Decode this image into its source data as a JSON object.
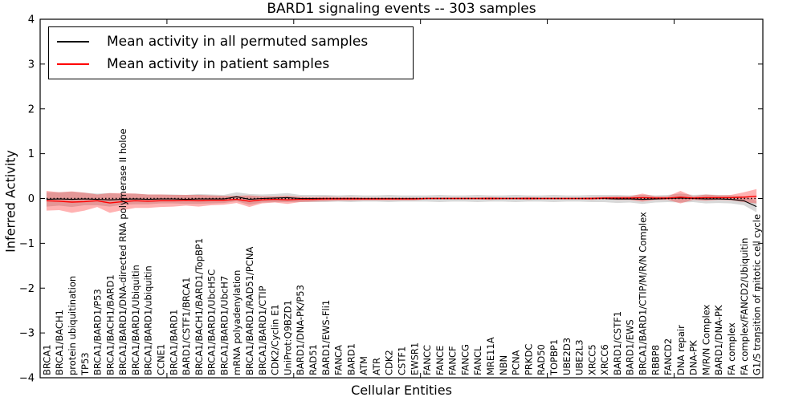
{
  "chart_data": {
    "type": "line",
    "title": "BARD1 signaling events -- 303 samples",
    "xlabel": "Cellular Entities",
    "ylabel": "Inferred Activity",
    "ylim": [
      -4,
      4
    ],
    "yticks": [
      4,
      3,
      2,
      1,
      0,
      -1,
      -2,
      -3,
      -4
    ],
    "xtick_positions": [
      0,
      10,
      20,
      30,
      40,
      50
    ],
    "grid": false,
    "legend_position": "upper left",
    "zero_line": "dotted black horizontal line at y=0",
    "categories": [
      "BRCA1",
      "BRCA1/BACH1",
      "protein ubiquitination",
      "TP53",
      "BRCA1/BARD1/P53",
      "BRCA1/BACH1/BARD1",
      "BRCA1/BARD1/DNA-directed RNA polymerase II holoe",
      "BRCA1/BARD1/Ubiquitin",
      "BRCA1/BARD1/ubiquitin",
      "CCNE1",
      "BRCA1/BARD1",
      "BARD1/CSTF1/BRCA1",
      "BRCA1/BACH1/BARD1/TopBP1",
      "BRCA1/BARD1/UbcH5C",
      "BRCA1/BARD1/UbcH7",
      "mRNA polyadenylation",
      "BRCA1/BARD1/RAD51/PCNA",
      "BRCA1/BARD1/CTIP",
      "CDK2/Cyclin E1",
      "UniProt:Q9BZD1",
      "BARD1/DNA-PK/P53",
      "RAD51",
      "BARD1/EWS-Fli1",
      "FANCA",
      "BARD1",
      "ATM",
      "ATR",
      "CDK2",
      "CSTF1",
      "EWSR1",
      "FANCC",
      "FANCE",
      "FANCF",
      "FANCG",
      "FANCL",
      "MRE11A",
      "NBN",
      "PCNA",
      "PRKDC",
      "RAD50",
      "TOPBP1",
      "UBE2D3",
      "UBE2L3",
      "XRCC5",
      "XRCC6",
      "BARD1/CSTF1",
      "BARD1/EWS",
      "BRCA1/BARD1/CTIP/M/R/N Complex",
      "RBBP8",
      "FANCD2",
      "DNA repair",
      "DNA-PK",
      "M/R/N Complex",
      "BARD1/DNA-PK",
      "FA complex",
      "FA complex/FANCD2/Ubiquitin",
      "G1/S transition of mitotic cell cycle"
    ],
    "series": [
      {
        "name": "Mean activity in all permuted samples",
        "color": "#000000",
        "band_color": "#999999",
        "band_opacity": 0.38,
        "values": [
          -0.02,
          -0.01,
          -0.02,
          -0.01,
          -0.02,
          -0.03,
          -0.02,
          -0.01,
          -0.02,
          -0.01,
          -0.01,
          -0.02,
          -0.01,
          -0.01,
          -0.01,
          0.04,
          -0.02,
          0.0,
          0.01,
          0.02,
          0.0,
          0.0,
          0.0,
          0.0,
          0.0,
          0.0,
          0.0,
          0.0,
          0.0,
          0.0,
          0.0,
          0.0,
          0.0,
          0.0,
          0.0,
          0.0,
          0.0,
          0.0,
          0.0,
          0.0,
          0.0,
          0.0,
          0.0,
          0.0,
          0.0,
          -0.01,
          -0.01,
          -0.02,
          -0.01,
          0.0,
          0.01,
          0.0,
          -0.01,
          -0.01,
          -0.02,
          -0.05,
          -0.18
        ],
        "band_halfwidth": [
          0.16,
          0.15,
          0.17,
          0.14,
          0.13,
          0.15,
          0.12,
          0.12,
          0.11,
          0.1,
          0.1,
          0.1,
          0.11,
          0.1,
          0.09,
          0.1,
          0.12,
          0.09,
          0.09,
          0.1,
          0.08,
          0.08,
          0.08,
          0.07,
          0.08,
          0.07,
          0.07,
          0.08,
          0.07,
          0.07,
          0.07,
          0.08,
          0.07,
          0.07,
          0.08,
          0.07,
          0.07,
          0.08,
          0.07,
          0.07,
          0.08,
          0.07,
          0.07,
          0.08,
          0.08,
          0.09,
          0.08,
          0.1,
          0.08,
          0.08,
          0.1,
          0.08,
          0.1,
          0.09,
          0.09,
          0.1,
          0.13
        ]
      },
      {
        "name": "Mean activity in patient samples",
        "color": "#ff0000",
        "band_color": "#ff0000",
        "band_opacity": 0.3,
        "values": [
          -0.05,
          -0.06,
          -0.08,
          -0.07,
          -0.05,
          -0.1,
          -0.07,
          -0.05,
          -0.06,
          -0.05,
          -0.05,
          -0.04,
          -0.05,
          -0.04,
          -0.04,
          -0.02,
          -0.06,
          -0.03,
          -0.02,
          -0.03,
          -0.02,
          -0.02,
          -0.01,
          -0.01,
          -0.01,
          -0.01,
          -0.01,
          -0.01,
          -0.01,
          -0.01,
          0.0,
          0.0,
          0.0,
          0.0,
          0.0,
          0.0,
          0.0,
          0.0,
          0.0,
          0.0,
          0.0,
          0.0,
          0.0,
          0.0,
          0.01,
          0.01,
          0.01,
          0.02,
          0.01,
          0.01,
          0.03,
          0.01,
          0.02,
          0.02,
          0.02,
          0.03,
          0.05
        ],
        "band_halfwidth": [
          0.22,
          0.2,
          0.24,
          0.2,
          0.14,
          0.22,
          0.19,
          0.16,
          0.15,
          0.14,
          0.13,
          0.12,
          0.13,
          0.11,
          0.1,
          0.08,
          0.13,
          0.08,
          0.07,
          0.09,
          0.06,
          0.05,
          0.05,
          0.04,
          0.04,
          0.03,
          0.03,
          0.03,
          0.03,
          0.03,
          0.02,
          0.02,
          0.02,
          0.02,
          0.02,
          0.03,
          0.02,
          0.02,
          0.03,
          0.02,
          0.02,
          0.02,
          0.02,
          0.03,
          0.03,
          0.04,
          0.04,
          0.09,
          0.04,
          0.04,
          0.14,
          0.04,
          0.07,
          0.05,
          0.06,
          0.11,
          0.16
        ]
      }
    ]
  }
}
